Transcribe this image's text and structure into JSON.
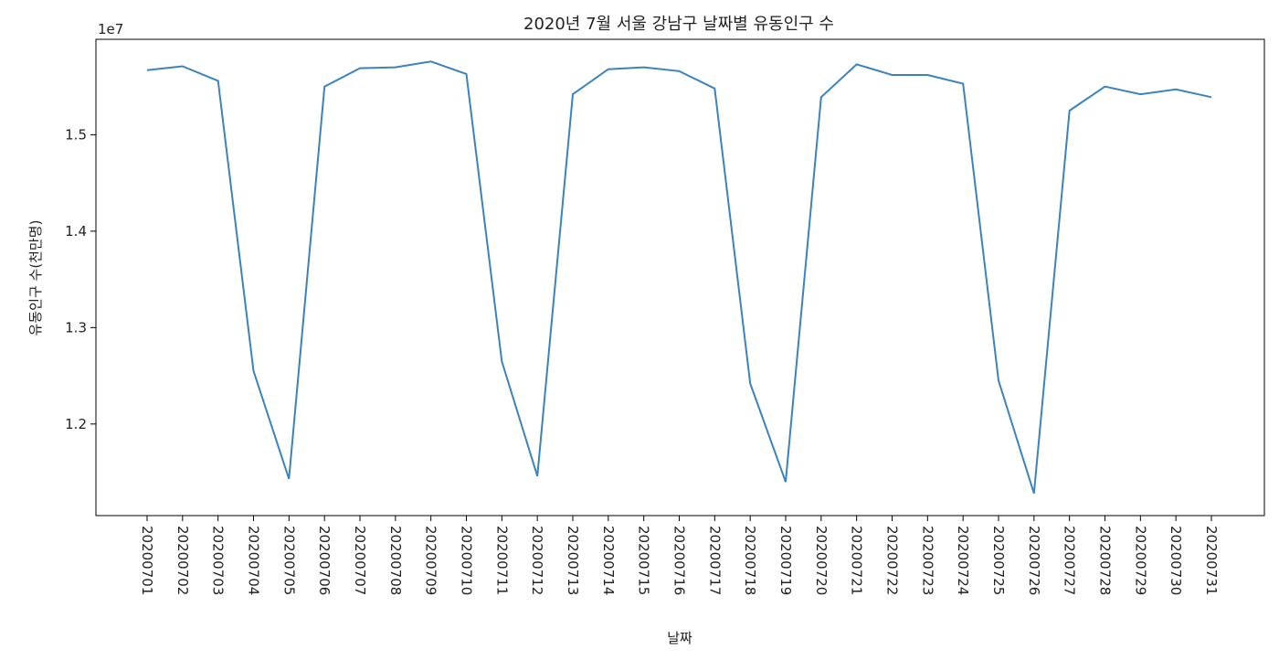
{
  "chart_data": {
    "type": "line",
    "title": "2020년 7월 서울 강남구 날짜별 유동인구 수",
    "xlabel": "날짜",
    "ylabel": "유동인구 수(천만명)",
    "y_offset_label": "1e7",
    "x": [
      "20200701",
      "20200702",
      "20200703",
      "20200704",
      "20200705",
      "20200706",
      "20200707",
      "20200708",
      "20200709",
      "20200710",
      "20200711",
      "20200712",
      "20200713",
      "20200714",
      "20200715",
      "20200716",
      "20200717",
      "20200718",
      "20200719",
      "20200720",
      "20200721",
      "20200722",
      "20200723",
      "20200724",
      "20200725",
      "20200726",
      "20200727",
      "20200728",
      "20200729",
      "20200730",
      "20200731"
    ],
    "series": [
      {
        "color": "#3b83bd",
        "values": [
          15670000,
          15710000,
          15560000,
          12550000,
          11430000,
          15500000,
          15690000,
          15700000,
          15760000,
          15630000,
          12650000,
          11460000,
          15420000,
          15680000,
          15700000,
          15660000,
          15480000,
          12420000,
          11400000,
          15390000,
          15730000,
          15620000,
          15620000,
          15530000,
          12450000,
          11280000,
          15250000,
          15500000,
          15420000,
          15470000,
          15390000
        ]
      }
    ],
    "yticks": [
      12000000,
      13000000,
      14000000,
      15000000
    ],
    "ytick_labels": [
      "1.2",
      "1.3",
      "1.4",
      "1.5"
    ],
    "ylim": [
      11050000,
      15990000
    ],
    "grid": false,
    "legend": "none"
  }
}
